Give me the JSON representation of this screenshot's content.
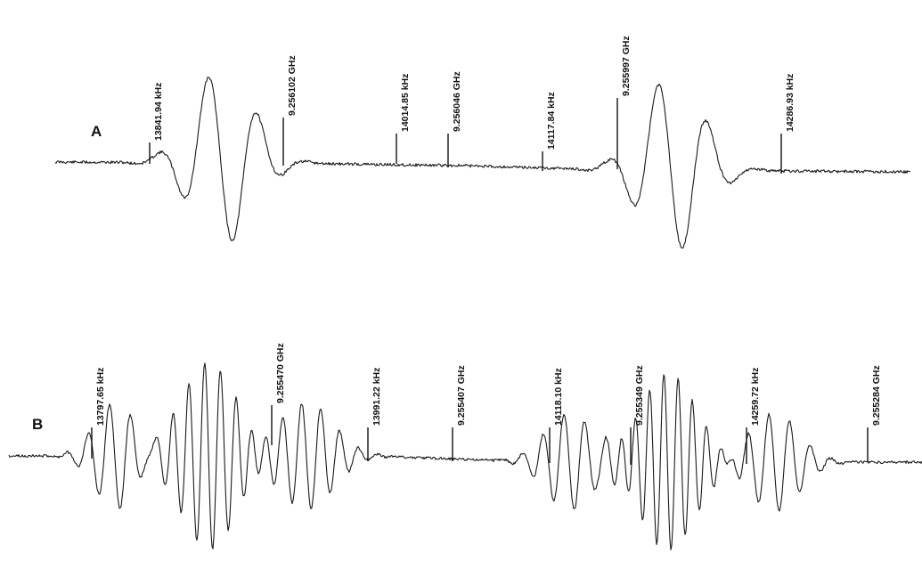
{
  "chart_data": [
    {
      "type": "line",
      "panel": "A",
      "markers": [
        {
          "label": "13841.94 kHz",
          "x": 13841.94
        },
        {
          "label": "9.256102 GHz",
          "x": 9.256102
        },
        {
          "label": "14014.85 kHz",
          "x": 14014.85
        },
        {
          "label": "9.256046 GHz",
          "x": 9.256046
        },
        {
          "label": "14117.84 kHz",
          "x": 14117.84
        },
        {
          "label": "9.255997 GHz",
          "x": 9.255997
        },
        {
          "label": "14286.93 kHz",
          "x": 14286.93
        }
      ]
    },
    {
      "type": "line",
      "panel": "B",
      "markers": [
        {
          "label": "13797.65 kHz",
          "x": 13797.65
        },
        {
          "label": "9.255470 GHz",
          "x": 9.25547
        },
        {
          "label": "13991.22 kHz",
          "x": 13991.22
        },
        {
          "label": "9.255407 GHz",
          "x": 9.255407
        },
        {
          "label": "14118.10 kHz",
          "x": 14118.1
        },
        {
          "label": "9.255349 GHz",
          "x": 9.255349
        },
        {
          "label": "14259.72 kHz",
          "x": 14259.72
        },
        {
          "label": "9.255284 GHz",
          "x": 9.255284
        }
      ]
    }
  ]
}
